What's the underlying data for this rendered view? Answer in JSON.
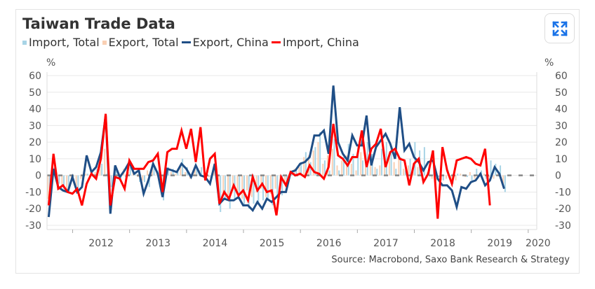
{
  "header": {
    "title": "Taiwan Trade Data"
  },
  "expand_button": {
    "icon": "expand-icon"
  },
  "colors": {
    "import_total": "#a8d4e6",
    "export_total": "#f9cfb3",
    "export_china": "#1f4e86",
    "import_china": "#ff0000",
    "zero_line": "#888888"
  },
  "source": "Source: Macrobond, Saxo Bank Research & Strategy",
  "chart_data": {
    "type": "line",
    "title": "Taiwan Trade Data",
    "ylabel_left": "%",
    "ylabel_right": "%",
    "ylim": [
      -30,
      60
    ],
    "yticks": [
      60,
      50,
      40,
      30,
      20,
      10,
      0,
      -10,
      -20,
      -30
    ],
    "xlim": [
      2011.55,
      2020.15
    ],
    "xticks": [
      "2012",
      "2013",
      "2014",
      "2015",
      "2016",
      "2017",
      "2018",
      "2019",
      "2020"
    ],
    "legend": [
      {
        "name": "Import, Total",
        "kind": "bar"
      },
      {
        "name": "Export, Total",
        "kind": "bar"
      },
      {
        "name": "Export, China",
        "kind": "line"
      },
      {
        "name": "Import, China",
        "kind": "line"
      }
    ],
    "start": 2011.58,
    "step": 0.0833,
    "series": [
      {
        "name": "Export, China",
        "values": [
          -25,
          4,
          -7,
          -9,
          -10,
          -1,
          -10,
          -7,
          12,
          2,
          5,
          14,
          36,
          -23,
          6,
          -1,
          3,
          8,
          1,
          3,
          -11,
          -3,
          7,
          1,
          -13,
          4,
          3,
          2,
          7,
          4,
          -1,
          6,
          0,
          -1,
          -5,
          7,
          -17,
          -14,
          -15,
          -15,
          -13,
          -18,
          -18,
          -21,
          -16,
          -20,
          -14,
          -16,
          -13,
          -10,
          -10,
          2,
          3,
          7,
          8,
          11,
          24,
          24,
          27,
          13,
          54,
          20,
          13,
          9,
          24,
          18,
          18,
          36,
          6,
          17,
          21,
          25,
          19,
          10,
          41,
          15,
          19,
          11,
          8,
          3,
          8,
          9,
          -2,
          -6,
          -6,
          -9,
          -19,
          -7,
          -8,
          -4,
          -3,
          1,
          -6,
          -3,
          5,
          1,
          -8
        ]
      },
      {
        "name": "Import, China",
        "values": [
          -18,
          13,
          -8,
          -6,
          -10,
          -11,
          -8,
          -18,
          -5,
          1,
          -2,
          10,
          37,
          -18,
          -1,
          -2,
          -8,
          9,
          4,
          4,
          4,
          8,
          9,
          13,
          -10,
          14,
          16,
          16,
          27,
          16,
          28,
          8,
          29,
          -3,
          10,
          13,
          -17,
          -10,
          -14,
          -6,
          -12,
          -9,
          -15,
          -1,
          -9,
          -5,
          -10,
          -9,
          -24,
          -1,
          -6,
          2,
          0,
          1,
          -1,
          6,
          2,
          1,
          -2,
          5,
          31,
          12,
          10,
          6,
          11,
          11,
          27,
          5,
          16,
          19,
          28,
          5,
          14,
          16,
          10,
          9,
          -6,
          7,
          10,
          -4,
          1,
          15,
          -26,
          17,
          3,
          -5,
          9,
          10,
          11,
          10,
          7,
          6,
          16,
          -18
        ]
      },
      {
        "name": "Import, Total",
        "values": [
          -18,
          5,
          -5,
          -8,
          -9,
          -1,
          -8,
          -5,
          1,
          3,
          4,
          7,
          1,
          -7,
          4,
          -3,
          -1,
          5,
          2,
          -4,
          -4,
          -7,
          5,
          3,
          -15,
          5,
          4,
          2,
          10,
          5,
          -1,
          4,
          5,
          -3,
          -2,
          5,
          -22,
          -14,
          -20,
          -14,
          -12,
          -18,
          -20,
          -17,
          -16,
          -15,
          -14,
          -18,
          -12,
          -12,
          -8,
          2,
          4,
          8,
          14,
          8,
          17,
          26,
          9,
          3,
          22,
          3,
          11,
          19,
          13,
          17,
          9,
          20,
          13,
          4,
          16,
          20,
          17,
          4,
          11,
          3,
          10,
          20,
          15,
          17,
          3,
          7,
          -1,
          -3,
          3,
          -5,
          1,
          0,
          -1,
          -3,
          4,
          3,
          -2,
          9,
          7,
          6,
          -10
        ]
      },
      {
        "name": "Export, Total",
        "values": [
          -14,
          3,
          -3,
          -6,
          -9,
          -3,
          -10,
          -2,
          1,
          -1,
          2,
          6,
          16,
          -5,
          2,
          -1,
          4,
          2,
          3,
          -1,
          -3,
          3,
          4,
          2,
          -8,
          3,
          2,
          1,
          5,
          2,
          -2,
          4,
          3,
          1,
          -1,
          3,
          -13,
          -11,
          -12,
          -9,
          -11,
          -14,
          -9,
          -13,
          -10,
          -8,
          -13,
          -11,
          -8,
          -8,
          -4,
          1,
          4,
          5,
          11,
          12,
          15,
          20,
          7,
          12,
          16,
          6,
          9,
          12,
          7,
          3,
          14,
          5,
          6,
          5,
          6,
          8,
          11,
          8,
          10,
          4,
          6,
          3,
          5,
          -1,
          2,
          -2,
          -3,
          -3,
          -2,
          -5,
          -3,
          1,
          -1,
          2,
          -2,
          0,
          1,
          -1,
          -2,
          2,
          -5
        ]
      }
    ]
  }
}
